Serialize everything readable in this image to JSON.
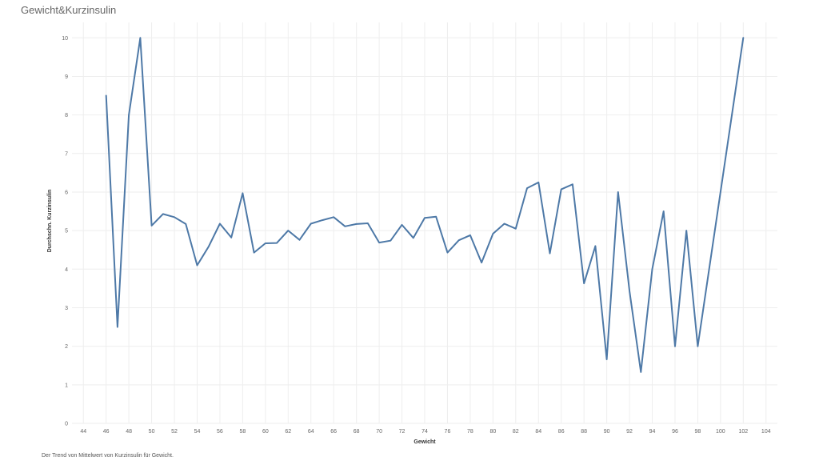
{
  "colors": {
    "line": "#4e79a7",
    "grid": "#eeeeee"
  },
  "footer_text": "Der Trend von Mittelwert von Kurzinsulin für Gewicht.",
  "chart_data": {
    "type": "line",
    "title": "Gewicht&Kurzinsulin",
    "xlabel": "Gewicht",
    "ylabel": "Durchschn. Kurzinsulin",
    "xlim": [
      43,
      105
    ],
    "ylim": [
      0,
      10.4
    ],
    "x_ticks": [
      44,
      46,
      48,
      50,
      52,
      54,
      56,
      58,
      60,
      62,
      64,
      66,
      68,
      70,
      72,
      74,
      76,
      78,
      80,
      82,
      84,
      86,
      88,
      90,
      92,
      94,
      96,
      98,
      100,
      102,
      104
    ],
    "y_ticks": [
      0,
      1,
      2,
      3,
      4,
      5,
      6,
      7,
      8,
      9,
      10
    ],
    "grid": true,
    "series": [
      {
        "x": [
          46,
          47,
          48,
          49,
          50,
          51,
          52,
          53,
          54,
          55,
          56,
          57,
          58,
          59,
          60,
          61,
          62,
          63,
          64,
          65,
          66,
          67,
          68,
          69,
          70,
          71,
          72,
          73,
          74,
          75,
          76,
          77,
          78,
          79,
          80,
          81,
          82,
          83,
          84,
          85,
          86,
          87,
          88,
          89,
          90,
          91,
          92,
          93,
          94,
          95,
          96,
          97,
          98,
          102
        ],
        "y": [
          8.5,
          2.5,
          8.0,
          10.0,
          5.13,
          5.43,
          5.35,
          5.17,
          4.1,
          4.58,
          5.18,
          4.82,
          5.97,
          4.43,
          4.67,
          4.68,
          5.0,
          4.76,
          5.18,
          5.27,
          5.35,
          5.11,
          5.17,
          5.19,
          4.69,
          4.74,
          5.15,
          4.81,
          5.33,
          5.36,
          4.43,
          4.75,
          4.88,
          4.17,
          4.92,
          5.18,
          5.05,
          6.1,
          6.25,
          4.41,
          6.07,
          6.2,
          3.63,
          4.6,
          1.66,
          6.0,
          3.43,
          1.33,
          4.0,
          5.5,
          2.0,
          5.0,
          2.0,
          10.0
        ]
      }
    ]
  }
}
